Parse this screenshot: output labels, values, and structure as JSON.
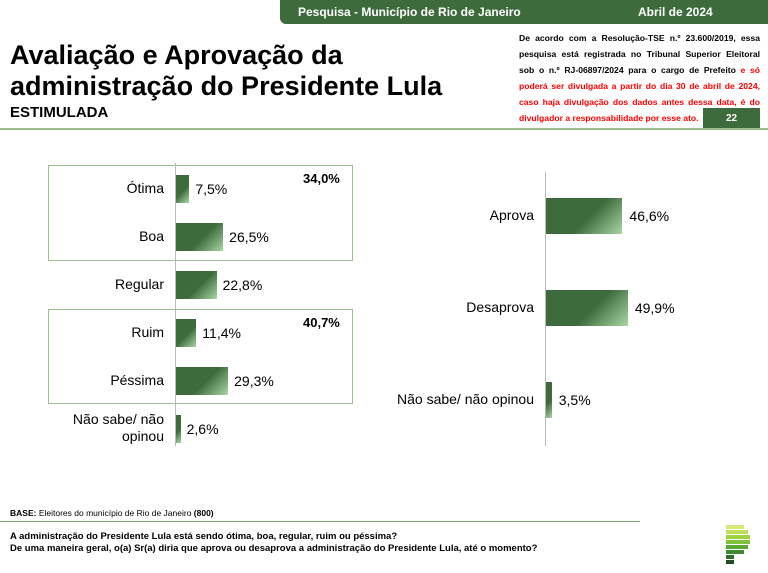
{
  "header": {
    "survey": "Pesquisa - Município de Rio de Janeiro",
    "date": "Abril de 2024"
  },
  "title": "Avaliação e Aprovação da administração do Presidente Lula",
  "subtitle": "ESTIMULADA",
  "legal": {
    "black": "De acordo com a Resolução-TSE n.º 23.600/2019, essa pesquisa está registrada no Tribunal Superior Eleitoral sob o n.º RJ-06897/2024 para o cargo de Prefeito ",
    "red": "e só poderá ser divulgada a partir do dia 30 de abril de 2024, caso haja divulgação dos dados antes dessa data, é do divulgador a responsabilidade por esse ato."
  },
  "page_number": "22",
  "chart_data": [
    {
      "type": "bar",
      "orientation": "horizontal",
      "categories": [
        "Ótima",
        "Boa",
        "Regular",
        "Ruim",
        "Péssima",
        "Não sabe/ não opinou"
      ],
      "values": [
        7.5,
        26.5,
        22.8,
        11.4,
        29.3,
        2.6
      ],
      "labels": [
        "7,5%",
        "26,5%",
        "22,8%",
        "11,4%",
        "29,3%",
        "2,6%"
      ],
      "groups": [
        {
          "name": "Ótima+Boa",
          "total": "34,0%"
        },
        {
          "name": "Ruim+Péssima",
          "total": "40,7%"
        }
      ],
      "color": "#3e6b3c"
    },
    {
      "type": "bar",
      "orientation": "horizontal",
      "categories": [
        "Aprova",
        "Desaprova",
        "Não sabe/ não opinou"
      ],
      "values": [
        46.6,
        49.9,
        3.5
      ],
      "labels": [
        "46,6%",
        "49,9%",
        "3,5%"
      ],
      "color": "#3e6b3c"
    }
  ],
  "footer": {
    "base_label": "BASE:",
    "base_text": " Eleitores do município de Rio de Janeiro ",
    "base_n": "(800)",
    "q1": "A administração do Presidente Lula está sendo ótima, boa, regular, ruim ou péssima?",
    "q2": "De uma maneira geral, o(a) Sr(a) diria que aprova ou desaprova a administração do Presidente Lula, até o momento?"
  }
}
